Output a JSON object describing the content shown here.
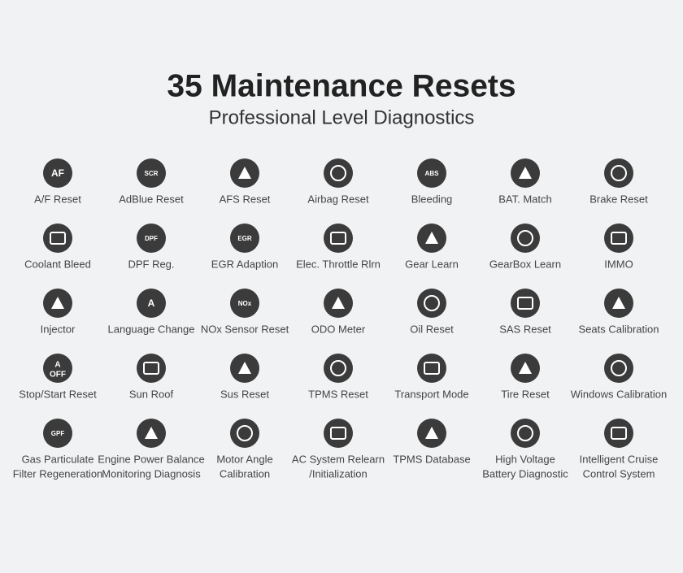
{
  "header": {
    "title": "35 Maintenance Resets",
    "subtitle": "Professional Level Diagnostics"
  },
  "items": [
    {
      "lines": [
        "A/F Reset"
      ],
      "icon_text": [
        "AF"
      ]
    },
    {
      "lines": [
        "AdBlue Reset"
      ],
      "icon_text": [
        "SCR"
      ]
    },
    {
      "lines": [
        "AFS Reset"
      ]
    },
    {
      "lines": [
        "Airbag Reset"
      ]
    },
    {
      "lines": [
        "Bleeding"
      ],
      "icon_text": [
        "ABS"
      ]
    },
    {
      "lines": [
        "BAT. Match"
      ]
    },
    {
      "lines": [
        "Brake Reset"
      ]
    },
    {
      "lines": [
        "Coolant Bleed"
      ]
    },
    {
      "lines": [
        "DPF Reg."
      ],
      "icon_text": [
        "DPF"
      ]
    },
    {
      "lines": [
        "EGR Adaption"
      ],
      "icon_text": [
        "EGR"
      ]
    },
    {
      "lines": [
        "Elec. Throttle Rlrn"
      ]
    },
    {
      "lines": [
        "Gear Learn"
      ]
    },
    {
      "lines": [
        "GearBox Learn"
      ]
    },
    {
      "lines": [
        "IMMO"
      ]
    },
    {
      "lines": [
        "Injector"
      ]
    },
    {
      "lines": [
        "Language Change"
      ],
      "icon_text": [
        "A"
      ]
    },
    {
      "lines": [
        "NOx Sensor Reset"
      ],
      "icon_text": [
        "NOx"
      ]
    },
    {
      "lines": [
        "ODO Meter"
      ]
    },
    {
      "lines": [
        "Oil Reset"
      ]
    },
    {
      "lines": [
        "SAS Reset"
      ]
    },
    {
      "lines": [
        "Seats Calibration"
      ]
    },
    {
      "lines": [
        "Stop/Start Reset"
      ],
      "icon_text": [
        "A",
        "OFF"
      ]
    },
    {
      "lines": [
        "Sun Roof"
      ]
    },
    {
      "lines": [
        "Sus Reset"
      ]
    },
    {
      "lines": [
        "TPMS Reset"
      ]
    },
    {
      "lines": [
        "Transport Mode"
      ]
    },
    {
      "lines": [
        "Tire Reset"
      ]
    },
    {
      "lines": [
        "Windows Calibration"
      ]
    },
    {
      "lines": [
        "Gas Particulate",
        "Filter Regeneration"
      ],
      "icon_text": [
        "GPF"
      ]
    },
    {
      "lines": [
        "Engine Power Balance",
        "Monitoring Diagnosis"
      ]
    },
    {
      "lines": [
        "Motor Angle",
        "Calibration"
      ]
    },
    {
      "lines": [
        "AC System Relearn",
        "/Initialization"
      ]
    },
    {
      "lines": [
        "TPMS Database"
      ]
    },
    {
      "lines": [
        "High Voltage",
        "Battery Diagnostic"
      ]
    },
    {
      "lines": [
        "Intelligent Cruise",
        "Control System"
      ]
    }
  ]
}
